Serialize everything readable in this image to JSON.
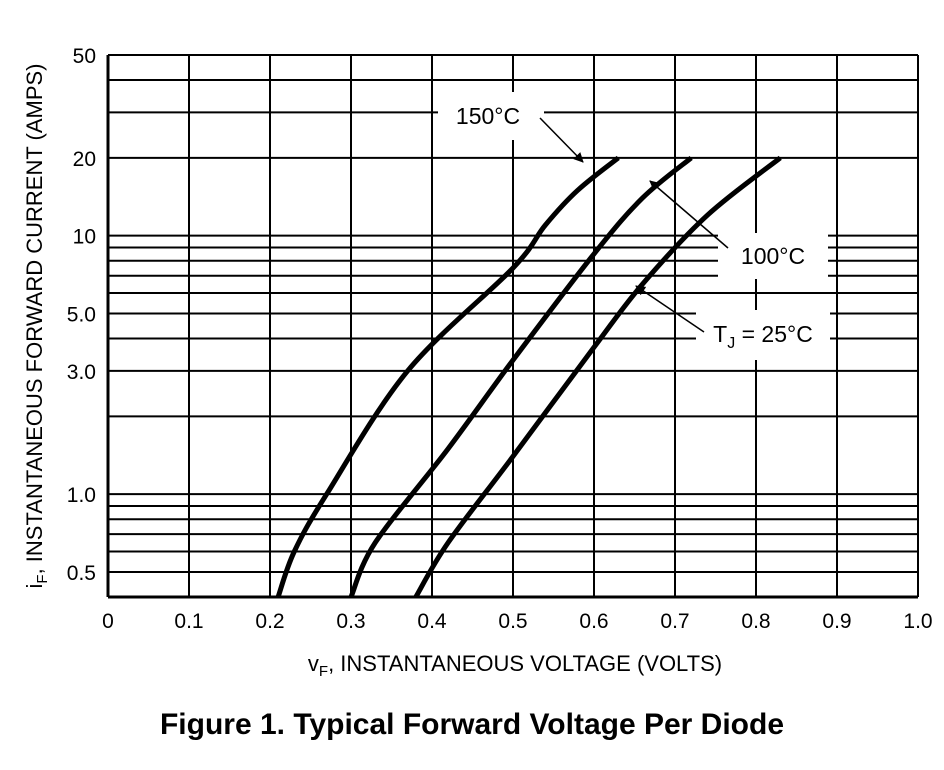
{
  "figure_caption": "Figure 1. Typical Forward Voltage Per Diode",
  "chart_data": {
    "type": "line",
    "title": "",
    "xlabel": {
      "main": "v",
      "sub": "F",
      "rest": ", INSTANTANEOUS VOLTAGE (VOLTS)"
    },
    "ylabel": {
      "main": "i",
      "sub": "F",
      "rest": ", INSTANTANEOUS FORWARD CURRENT (AMPS)"
    },
    "xlim": [
      0,
      1.0
    ],
    "ylim": [
      0.4,
      50
    ],
    "yscale": "log",
    "grid": true,
    "x_ticks": [
      {
        "value": 0,
        "label": "0"
      },
      {
        "value": 0.1,
        "label": "0.1"
      },
      {
        "value": 0.2,
        "label": "0.2"
      },
      {
        "value": 0.3,
        "label": "0.3"
      },
      {
        "value": 0.4,
        "label": "0.4"
      },
      {
        "value": 0.5,
        "label": "0.5"
      },
      {
        "value": 0.6,
        "label": "0.6"
      },
      {
        "value": 0.7,
        "label": "0.7"
      },
      {
        "value": 0.8,
        "label": "0.8"
      },
      {
        "value": 0.9,
        "label": "0.9"
      },
      {
        "value": 1.0,
        "label": "1.0"
      }
    ],
    "y_ticks": [
      {
        "value": 0.5,
        "label": "0.5"
      },
      {
        "value": 1.0,
        "label": "1.0"
      },
      {
        "value": 3.0,
        "label": "3.0"
      },
      {
        "value": 5.0,
        "label": "5.0"
      },
      {
        "value": 10,
        "label": "10"
      },
      {
        "value": 20,
        "label": "20"
      },
      {
        "value": 50,
        "label": "50"
      }
    ],
    "y_gridlines": [
      0.5,
      0.6,
      0.7,
      0.8,
      0.9,
      1.0,
      2.0,
      3.0,
      4.0,
      5.0,
      6.0,
      7.0,
      8.0,
      9.0,
      10,
      20,
      30,
      40,
      50
    ],
    "series": [
      {
        "name": "150°C",
        "points": [
          [
            0.21,
            0.4
          ],
          [
            0.23,
            0.6
          ],
          [
            0.27,
            1.0
          ],
          [
            0.37,
            3.0
          ],
          [
            0.5,
            7.5
          ],
          [
            0.54,
            11
          ],
          [
            0.58,
            15
          ],
          [
            0.63,
            20
          ]
        ]
      },
      {
        "name": "100°C",
        "points": [
          [
            0.3,
            0.4
          ],
          [
            0.33,
            0.65
          ],
          [
            0.42,
            1.5
          ],
          [
            0.5,
            3.3
          ],
          [
            0.6,
            8.5
          ],
          [
            0.66,
            14
          ],
          [
            0.72,
            20
          ]
        ]
      },
      {
        "name": "TJ = 25°C",
        "points": [
          [
            0.38,
            0.4
          ],
          [
            0.42,
            0.65
          ],
          [
            0.5,
            1.4
          ],
          [
            0.6,
            3.7
          ],
          [
            0.66,
            6.5
          ],
          [
            0.74,
            12
          ],
          [
            0.83,
            20
          ]
        ]
      }
    ],
    "annotations": [
      {
        "id": "a150",
        "text": "150°C",
        "series": 0
      },
      {
        "id": "a100",
        "text": "100°C",
        "series": 1
      },
      {
        "id": "a25",
        "main": "T",
        "sub": "J",
        "rest": " = 25°C",
        "series": 2
      }
    ]
  }
}
